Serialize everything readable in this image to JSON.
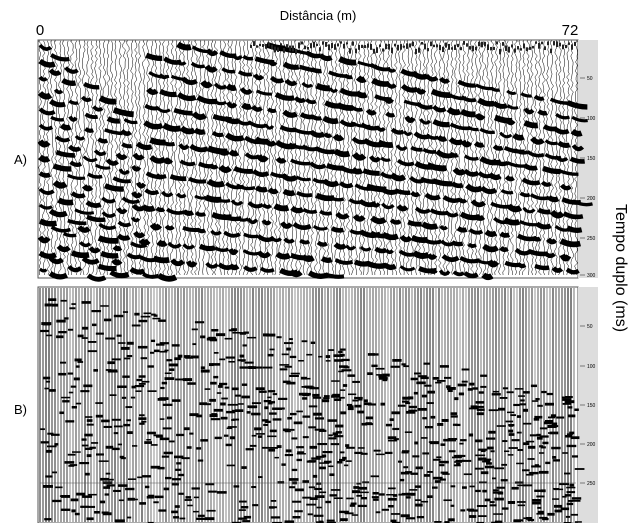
{
  "header": {
    "title": "Distância (m)",
    "left": "0",
    "right": "72"
  },
  "panels": [
    {
      "label": "A)",
      "ticks": [
        "50",
        "100",
        "150",
        "200",
        "250",
        "300"
      ]
    },
    {
      "label": "B)",
      "ticks": [
        "50",
        "100",
        "150",
        "200",
        "250"
      ]
    }
  ],
  "axis_label": "Tempo duplo (ms)"
}
